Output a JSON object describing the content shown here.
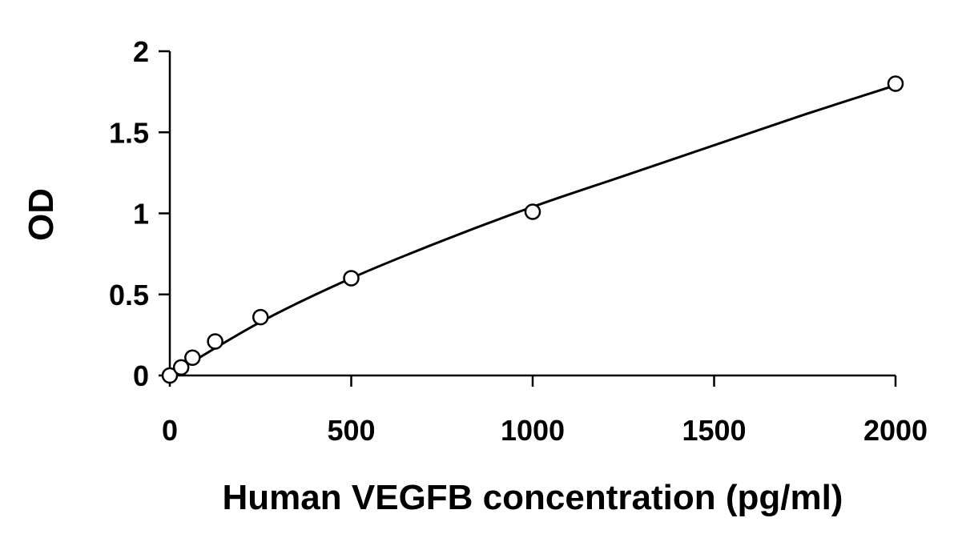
{
  "chart_data": {
    "type": "scatter",
    "title": "",
    "xlabel": "Human VEGFB concentration (pg/ml)",
    "ylabel": "OD",
    "xlim": [
      0,
      2000
    ],
    "ylim": [
      0,
      2
    ],
    "x_ticks": [
      0,
      500,
      1000,
      1500,
      2000
    ],
    "x_tick_labels": [
      "0",
      "500",
      "1000",
      "1500",
      "2000"
    ],
    "y_ticks": [
      0,
      0.5,
      1,
      1.5,
      2
    ],
    "y_tick_labels": [
      "0",
      "0.5",
      "1",
      "1.5",
      "2"
    ],
    "grid": false,
    "legend": "none",
    "series": [
      {
        "marker": "open-circle",
        "x": [
          0,
          31.25,
          62.5,
          125,
          250,
          500,
          1000,
          2000
        ],
        "y": [
          0.0,
          0.05,
          0.11,
          0.21,
          0.36,
          0.6,
          1.01,
          1.8
        ]
      }
    ],
    "fit_curve": {
      "type": "smooth",
      "x": [
        0,
        250,
        500,
        750,
        1000,
        1250,
        1500,
        1750,
        2000
      ],
      "y": [
        0.0,
        0.33,
        0.6,
        0.83,
        1.04,
        1.23,
        1.42,
        1.61,
        1.79
      ]
    }
  }
}
